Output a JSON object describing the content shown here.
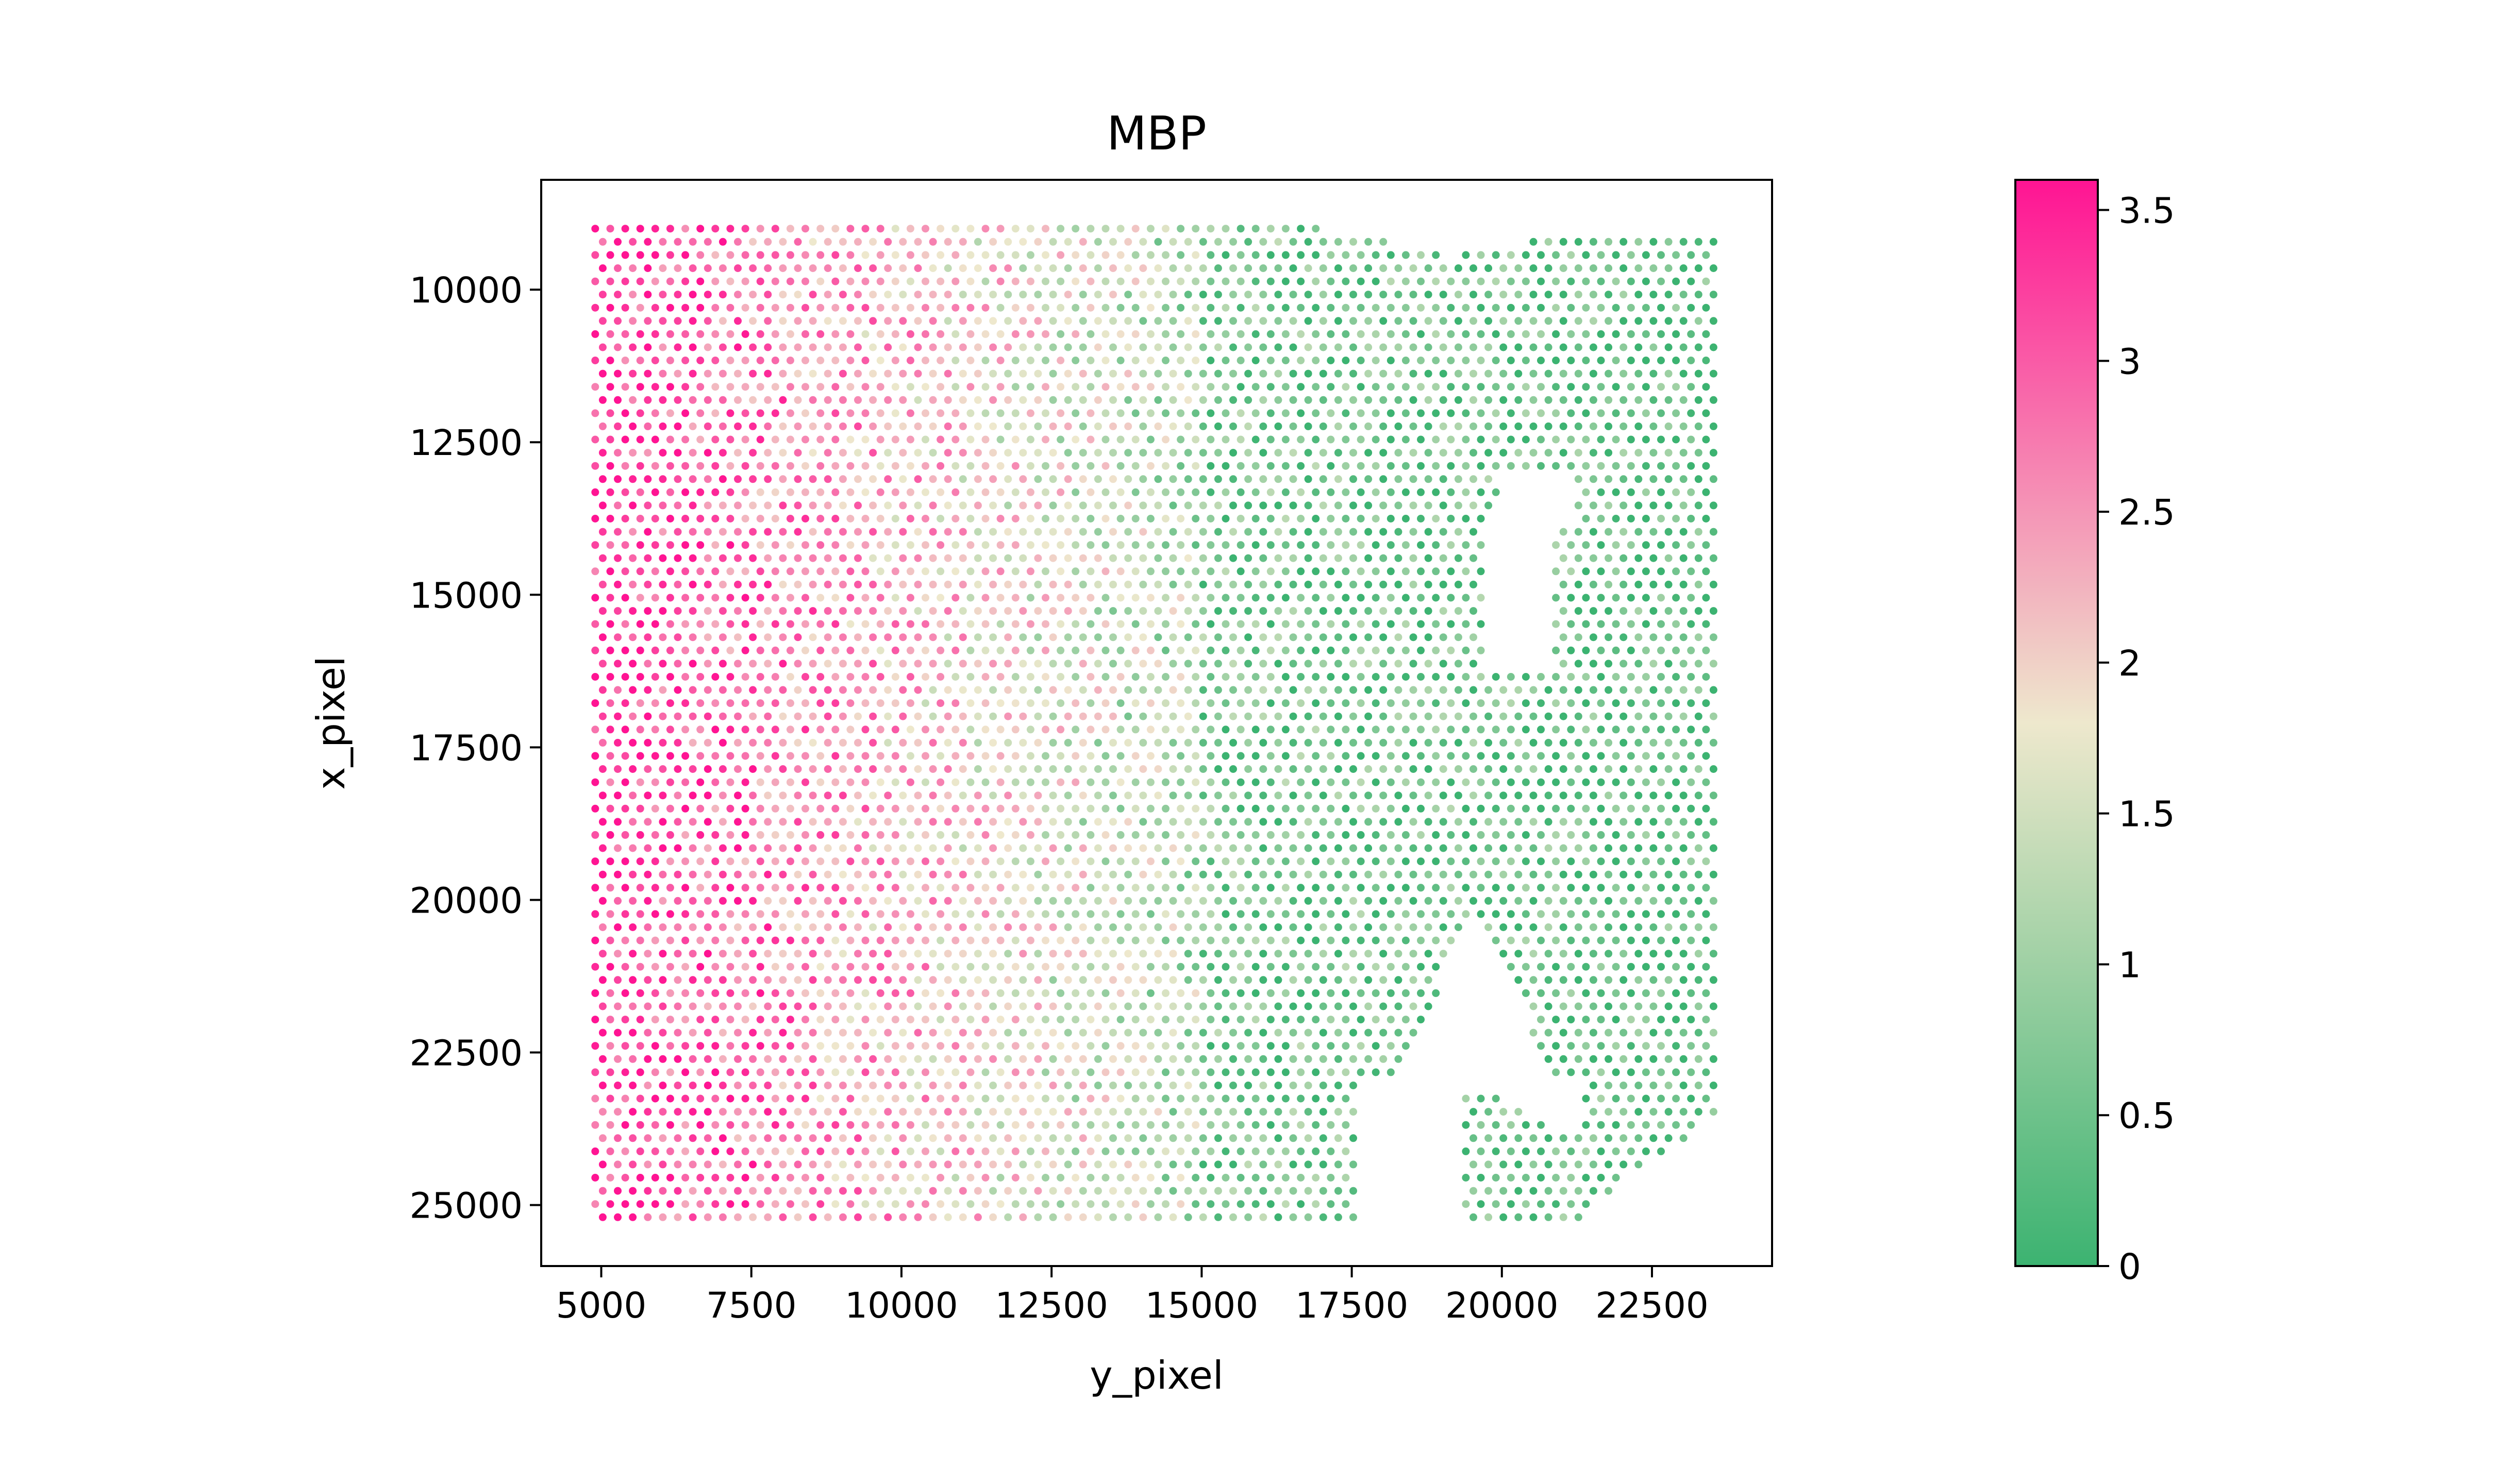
{
  "chart_data": {
    "type": "scatter",
    "title": "MBP",
    "xlabel": "y_pixel",
    "ylabel": "x_pixel",
    "xlim": [
      4000,
      24500
    ],
    "ylim": [
      26000,
      8200
    ],
    "y_axis_inverted": true,
    "xticks": [
      5000,
      7500,
      10000,
      12500,
      15000,
      17500,
      20000,
      22500
    ],
    "xtick_labels": [
      "5000",
      "7500",
      "10000",
      "12500",
      "15000",
      "17500",
      "20000",
      "22500"
    ],
    "yticks": [
      10000,
      12500,
      15000,
      17500,
      20000,
      22500,
      25000
    ],
    "ytick_labels": [
      "10000",
      "12500",
      "15000",
      "17500",
      "20000",
      "22500",
      "25000"
    ],
    "grid": false,
    "colorbar": {
      "range": [
        0,
        3.6
      ],
      "ticks": [
        0,
        0.5,
        1,
        1.5,
        2,
        2.5,
        3,
        3.5
      ],
      "tick_labels": [
        "0",
        "0.5",
        "1",
        "1.5",
        "2",
        "2.5",
        "3",
        "3.5"
      ],
      "colors": [
        "#3cb371",
        "#eee8cd",
        "#ff1493"
      ]
    },
    "point_grid": {
      "x_min": 4900,
      "x_max": 23600,
      "y_min": 9000,
      "y_max": 25200,
      "col_spacing": 250,
      "row_spacing": 216
    },
    "expression_trend": "high on left (y_pixel ~5000-7000), decreasing to low on right (y_pixel > 15000)",
    "empty_regions": [
      {
        "shape": "hole",
        "x_range": [
          19700,
          20900
        ],
        "y_range": [
          13500,
          16300
        ]
      },
      {
        "shape": "notch",
        "x_range": [
          17500,
          19500
        ],
        "y_range": [
          20500,
          25200
        ]
      }
    ]
  }
}
